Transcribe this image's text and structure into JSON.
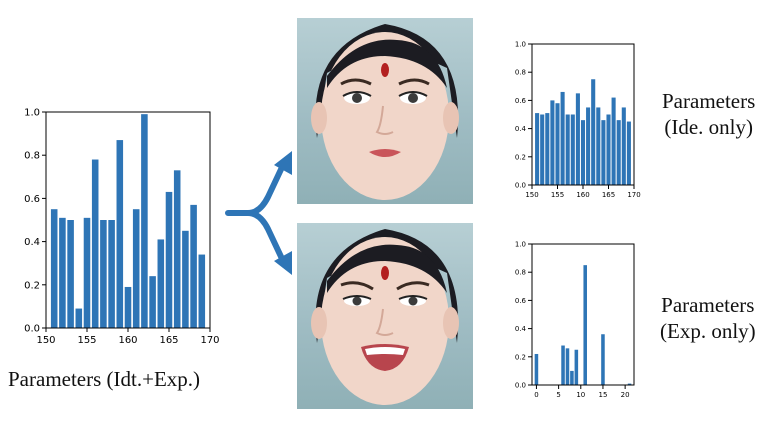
{
  "captions": {
    "main": "Parameters (Idt.+Exp.)",
    "ide_line1": "Parameters",
    "ide_line2": "(Ide. only)",
    "exp_line1": "Parameters",
    "exp_line2": "(Exp. only)"
  },
  "colors": {
    "bar": "#2e75b6",
    "arrow": "#2e75b6",
    "axis": "#000000"
  },
  "faces": [
    {
      "name": "face-identity-only",
      "expression": "neutral"
    },
    {
      "name": "face-expression-only",
      "expression": "smile"
    }
  ],
  "chart_data": [
    {
      "id": "main",
      "type": "bar",
      "title": "",
      "xlabel": "",
      "ylabel": "",
      "x": [
        151,
        152,
        153,
        154,
        155,
        156,
        157,
        158,
        159,
        160,
        161,
        162,
        163,
        164,
        165,
        166,
        167,
        168,
        169
      ],
      "values": [
        0.55,
        0.51,
        0.5,
        0.09,
        0.51,
        0.78,
        0.5,
        0.5,
        0.87,
        0.19,
        0.55,
        0.99,
        0.24,
        0.41,
        0.63,
        0.73,
        0.45,
        0.57,
        0.34
      ],
      "xlim": [
        150,
        170
      ],
      "ylim": [
        0,
        1.0
      ],
      "xticks": [
        150,
        155,
        160,
        165,
        170
      ],
      "yticks": [
        0.0,
        0.2,
        0.4,
        0.6,
        0.8,
        1.0
      ],
      "ytick_labels": [
        "0.0",
        "0.2",
        "0.4",
        "0.6",
        "0.8",
        "1.0"
      ],
      "grid": false
    },
    {
      "id": "ide",
      "type": "bar",
      "title": "",
      "xlabel": "",
      "ylabel": "",
      "x": [
        151,
        152,
        153,
        154,
        155,
        156,
        157,
        158,
        159,
        160,
        161,
        162,
        163,
        164,
        165,
        166,
        167,
        168,
        169
      ],
      "values": [
        0.51,
        0.5,
        0.51,
        0.6,
        0.58,
        0.66,
        0.5,
        0.5,
        0.65,
        0.46,
        0.55,
        0.75,
        0.55,
        0.46,
        0.5,
        0.62,
        0.46,
        0.55,
        0.45
      ],
      "xlim": [
        150,
        170
      ],
      "ylim": [
        0,
        1.0
      ],
      "xticks": [
        150,
        155,
        160,
        165,
        170
      ],
      "yticks": [
        0.0,
        0.2,
        0.4,
        0.6,
        0.8,
        1.0
      ],
      "ytick_labels": [
        "0.0",
        "0.2",
        "0.4",
        "0.6",
        "0.8",
        "1.0"
      ],
      "grid": false
    },
    {
      "id": "exp",
      "type": "bar",
      "title": "",
      "xlabel": "",
      "ylabel": "",
      "x": [
        0,
        6,
        7,
        8,
        9,
        11,
        15,
        21
      ],
      "values": [
        0.22,
        0.28,
        0.26,
        0.1,
        0.25,
        0.85,
        0.36,
        0.01
      ],
      "xlim": [
        -1,
        22
      ],
      "ylim": [
        0,
        1.0
      ],
      "xticks": [
        0,
        5,
        10,
        15,
        20
      ],
      "yticks": [
        0.0,
        0.2,
        0.4,
        0.6,
        0.8,
        1.0
      ],
      "ytick_labels": [
        "0.0",
        "0.2",
        "0.4",
        "0.6",
        "0.8",
        "1.0"
      ],
      "grid": false
    }
  ]
}
